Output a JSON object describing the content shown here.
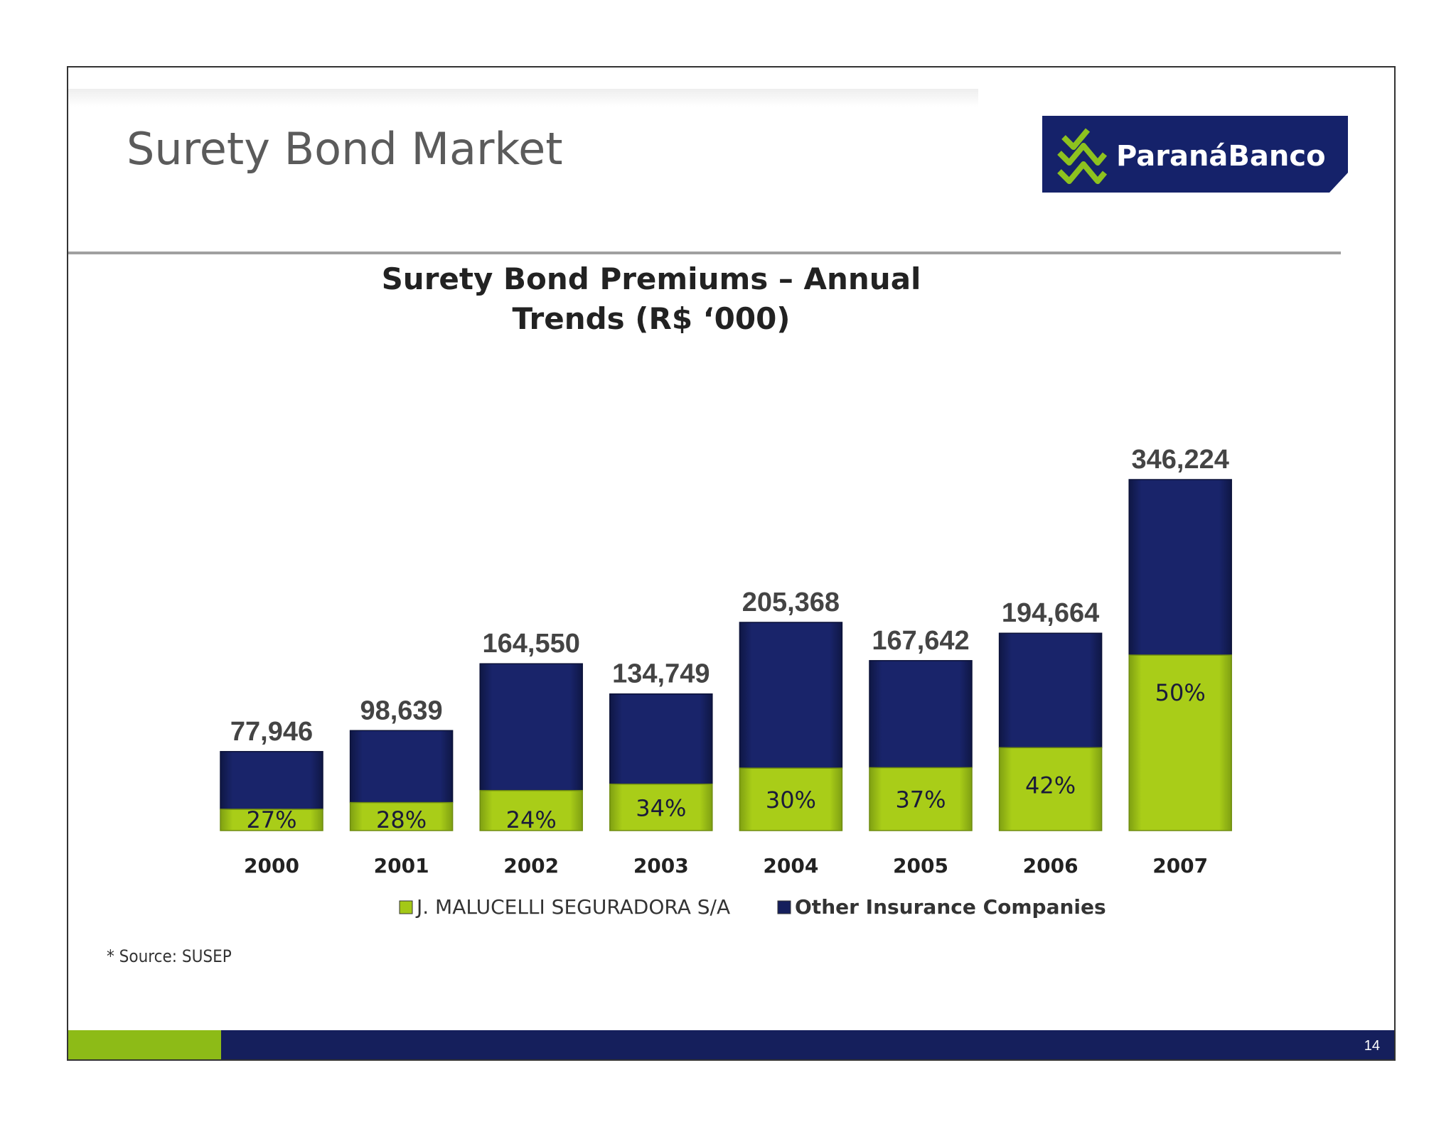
{
  "slide": {
    "title": "Surety Bond Market",
    "source_note": "* Source: SUSEP",
    "page_number": "14",
    "logo_text": "ParanáBanco"
  },
  "colors": {
    "navy": "#151f5c",
    "green": "#a4c817",
    "title_gray": "#5b5b5b",
    "value_label": "#444444"
  },
  "chart_data": {
    "type": "bar",
    "stacked": true,
    "title": "Surety Bond Premiums – Annual Trends (R$ ‘000)",
    "title_lines": [
      "Surety Bond Premiums – Annual",
      "Trends (R$ ‘000)"
    ],
    "categories": [
      "2000",
      "2001",
      "2002",
      "2003",
      "2004",
      "2005",
      "2006",
      "2007"
    ],
    "totals": [
      77946,
      98639,
      164550,
      134749,
      205368,
      167642,
      194664,
      346224
    ],
    "total_labels": [
      "77,946",
      "98,639",
      "164,550",
      "134,749",
      "205,368",
      "167,642",
      "194,664",
      "346,224"
    ],
    "share_labels": [
      "27%",
      "28%",
      "24%",
      "34%",
      "30%",
      "37%",
      "42%",
      "50%"
    ],
    "series": [
      {
        "name": "J. MALUCELLI SEGURADORA S/A",
        "color": "#a4c817",
        "values": [
          21045,
          27619,
          39492,
          45815,
          61610,
          62028,
          81759,
          173112
        ]
      },
      {
        "name": "Other Insurance Companies",
        "color": "#151f5c",
        "values": [
          56901,
          71020,
          125058,
          88934,
          143758,
          105614,
          112905,
          173112
        ]
      }
    ],
    "ylim": [
      0,
      346224
    ],
    "grid": false,
    "legend_position": "bottom"
  }
}
